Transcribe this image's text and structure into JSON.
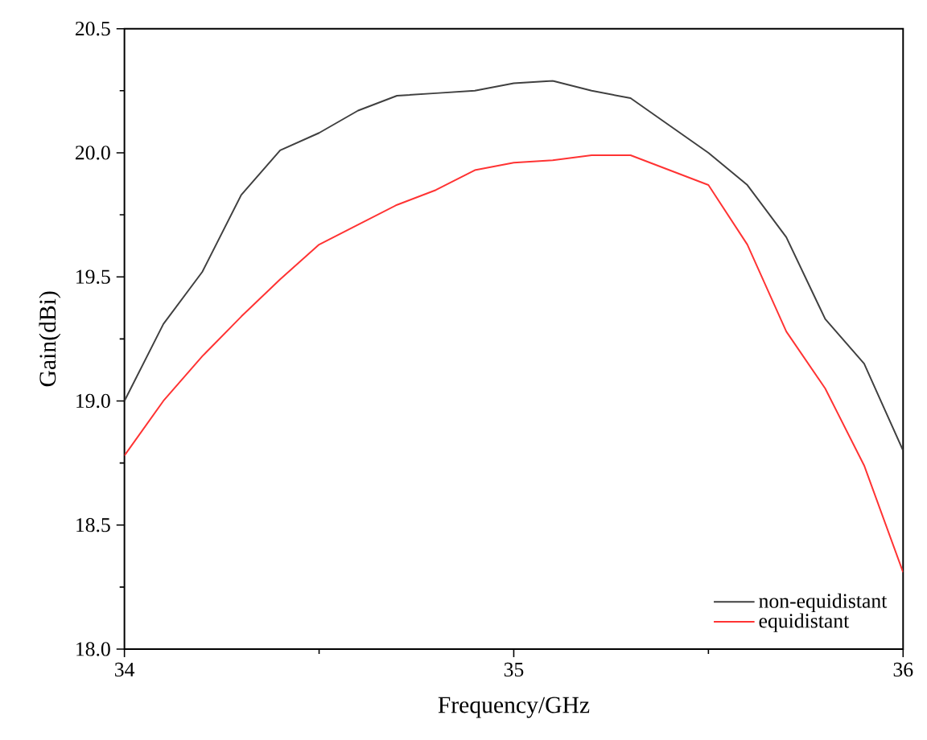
{
  "chart_data": {
    "type": "line",
    "xlabel": "Frequency/GHz",
    "ylabel": "Gain(dBi)",
    "x": [
      34.0,
      34.1,
      34.2,
      34.3,
      34.4,
      34.5,
      34.6,
      34.7,
      34.8,
      34.9,
      35.0,
      35.1,
      35.2,
      35.3,
      35.4,
      35.5,
      35.6,
      35.7,
      35.8,
      35.9,
      36.0
    ],
    "series": [
      {
        "name": "non-equidistant",
        "color": "#404040",
        "values": [
          19.0,
          19.31,
          19.52,
          19.83,
          20.01,
          20.08,
          20.17,
          20.23,
          20.24,
          20.25,
          20.28,
          20.29,
          20.25,
          20.22,
          20.11,
          20.0,
          19.87,
          19.66,
          19.33,
          19.15,
          18.8
        ]
      },
      {
        "name": "equidistant",
        "color": "#ff3333",
        "values": [
          18.78,
          19.0,
          19.18,
          19.34,
          19.49,
          19.63,
          19.71,
          19.79,
          19.85,
          19.93,
          19.96,
          19.97,
          19.99,
          19.99,
          19.93,
          19.87,
          19.63,
          19.28,
          19.05,
          18.74,
          18.31
        ]
      }
    ],
    "xlim": [
      34,
      36
    ],
    "xticks": [
      34,
      35,
      36
    ],
    "ylim": [
      18.0,
      20.5
    ],
    "yticks": [
      {
        "value": 18.0,
        "label": "18.0"
      },
      {
        "value": 18.5,
        "label": "18.5"
      },
      {
        "value": 19.0,
        "label": "19.0"
      },
      {
        "value": 19.5,
        "label": "19.5"
      },
      {
        "value": 20.0,
        "label": "20.0"
      },
      {
        "value": 20.5,
        "label": "20.5"
      }
    ],
    "legend": "bottom right",
    "grid": false,
    "marker": "none",
    "line_style": "solid"
  }
}
